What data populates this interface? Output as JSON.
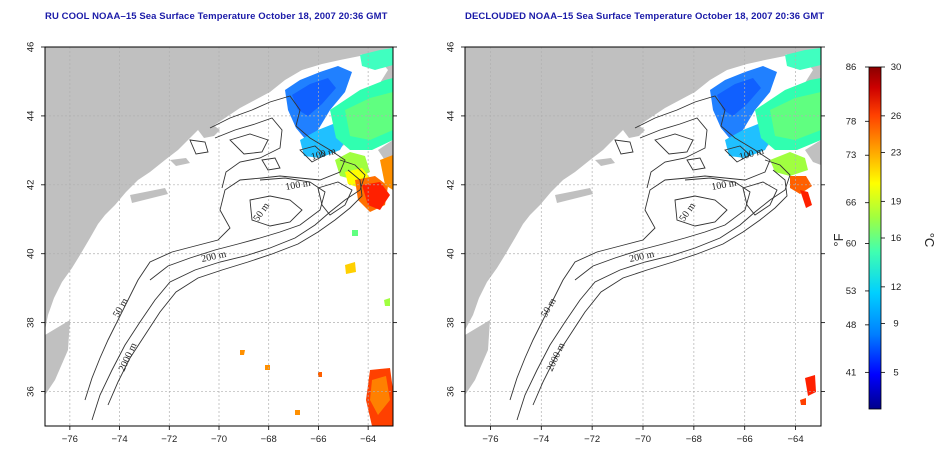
{
  "panels": [
    {
      "title": "RU COOL NOAA–15 Sea Surface Temperature October 18, 2007 20:36 GMT",
      "contour_labels": [
        "100 m",
        "100 m",
        "50 m",
        "200 m",
        "50 m",
        "2000 m"
      ]
    },
    {
      "title": "DECLOUDED NOAA–15 Sea Surface Temperature October 18, 2007 20:36 GMT",
      "contour_labels": [
        "100 m",
        "100 m",
        "50 m",
        "200 m",
        "50 m",
        "2000 m"
      ]
    }
  ],
  "axes": {
    "x_ticks": [
      "−76",
      "−74",
      "−72",
      "−70",
      "−68",
      "−66",
      "−64"
    ],
    "y_ticks": [
      "46",
      "44",
      "42",
      "40",
      "38",
      "36"
    ],
    "x_range": [
      -77,
      -63
    ],
    "y_range": [
      35,
      46
    ]
  },
  "colorbar": {
    "unit_f": "°F",
    "unit_c": "°C",
    "f_ticks": [
      "86",
      "78",
      "73",
      "66",
      "60",
      "53",
      "48",
      "41"
    ],
    "c_ticks": [
      "30",
      "26",
      "23",
      "19",
      "16",
      "12",
      "9",
      "5"
    ],
    "range_c": [
      2,
      30
    ],
    "colors": [
      "#00008b",
      "#0000ff",
      "#0080ff",
      "#00d0ff",
      "#40ffb0",
      "#a0ff40",
      "#ffff00",
      "#ffa000",
      "#ff4000",
      "#cc0000",
      "#8b0000"
    ]
  },
  "colors": {
    "land": "#c0c0c0",
    "ocean": "#ffffff",
    "grid": "#b0b0b0",
    "title": "#1a1aa8"
  }
}
